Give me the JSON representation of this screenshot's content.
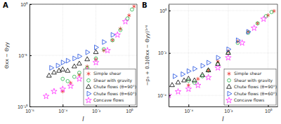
{
  "chart_data": [
    {
      "type": "scatter",
      "title": "A",
      "x_label": "I",
      "y_label": "Θxx − Θyy",
      "log": true,
      "grid": true,
      "legend": "lower right",
      "xlim": [
        1e-06,
        3
      ],
      "ylim": [
        1e-10,
        1
      ],
      "xticks": [
        {
          "value": 1e-06,
          "label": "10⁻⁶"
        },
        {
          "value": 0.0001,
          "label": "10⁻⁴"
        },
        {
          "value": 0.01,
          "label": "10⁻²"
        },
        {
          "value": 1,
          "label": "10⁰"
        }
      ],
      "yticks": [
        {
          "value": 1e-10,
          "label": "10⁻¹⁰"
        },
        {
          "value": 1e-05,
          "label": "10⁻⁵"
        },
        {
          "value": 1,
          "label": "10⁰"
        }
      ],
      "series": [
        {
          "name": "Simple shear",
          "color": "#e8312b",
          "marker": "asterisk",
          "x": [
            0.0001,
            0.0003,
            0.001,
            0.003,
            0.01,
            0.03,
            0.1,
            0.3,
            1,
            2
          ],
          "values": [
            3e-09,
            2e-08,
            1.2e-07,
            8e-07,
            4e-06,
            3e-05,
            0.0003,
            0.004,
            0.08,
            0.6
          ]
        },
        {
          "name": "Shear with gravity",
          "color": "#27b84a",
          "marker": "circle",
          "x": [
            0.0001,
            0.0002,
            0.0005,
            0.001,
            0.003,
            0.01,
            0.03,
            0.1,
            0.3,
            0.8,
            1.5
          ],
          "values": [
            5e-08,
            3e-08,
            8e-08,
            2e-07,
            6e-07,
            5e-06,
            4e-05,
            0.0003,
            0.003,
            0.04,
            0.3
          ]
        },
        {
          "name": "Chute flows (θ=90°)",
          "color": "#000000",
          "marker": "triangle-up",
          "x": [
            1.5e-05,
            3e-05,
            6e-05,
            0.0001,
            0.0002,
            0.0005,
            0.001,
            0.003,
            0.01
          ],
          "values": [
            1e-07,
            2e-07,
            3e-07,
            4e-07,
            3e-07,
            8e-07,
            1.5e-06,
            4e-06,
            2e-05
          ]
        },
        {
          "name": "Chute flows (θ=60°)",
          "color": "#1f4fe0",
          "marker": "triangle-right",
          "x": [
            2e-05,
            5e-05,
            0.0001,
            0.0002,
            0.0005,
            0.001,
            0.003,
            0.01,
            0.03,
            0.1
          ],
          "values": [
            6e-07,
            1e-06,
            2e-06,
            3e-06,
            5e-06,
            8e-06,
            2e-05,
            6e-05,
            0.0002,
            0.001
          ]
        },
        {
          "name": "Concave flows",
          "color": "#ff33ff",
          "marker": "star",
          "x": [
            1e-05,
            3e-05,
            0.0001,
            0.0003,
            0.001,
            0.003,
            0.01,
            0.05,
            0.2,
            0.6
          ],
          "values": [
            1e-09,
            3e-09,
            5e-09,
            1e-08,
            5e-08,
            3e-07,
            2e-06,
            3e-05,
            0.001,
            0.02
          ]
        }
      ]
    },
    {
      "type": "scatter",
      "title": "B",
      "x_label": "I",
      "y_label": "−p₃ + 0.1(Θxx − Θyy)¹ᐟ⁶",
      "log": true,
      "grid": true,
      "legend": "lower right",
      "xlim": [
        1e-05,
        3
      ],
      "ylim": [
        3e-05,
        2
      ],
      "xticks": [
        {
          "value": 0.0001,
          "label": "10⁻⁴"
        },
        {
          "value": 0.01,
          "label": "10⁻²"
        },
        {
          "value": 1,
          "label": "10⁰"
        }
      ],
      "yticks": [
        {
          "value": 0.0001,
          "label": "10⁻⁴"
        },
        {
          "value": 0.01,
          "label": "10⁻²"
        },
        {
          "value": 1,
          "label": "10⁰"
        }
      ],
      "series": [
        {
          "name": "Simple shear",
          "color": "#e8312b",
          "marker": "asterisk",
          "x": [
            0.0001,
            0.0003,
            0.001,
            0.003,
            0.01,
            0.03,
            0.1,
            0.3,
            1,
            2
          ],
          "values": [
            0.0003,
            0.0006,
            0.0015,
            0.004,
            0.012,
            0.035,
            0.1,
            0.25,
            0.6,
            0.95
          ]
        },
        {
          "name": "Shear with gravity",
          "color": "#27b84a",
          "marker": "circle",
          "x": [
            0.0001,
            0.0002,
            0.0005,
            0.001,
            0.003,
            0.01,
            0.03,
            0.1,
            0.3,
            0.8,
            1.5
          ],
          "values": [
            0.0005,
            0.0004,
            0.0008,
            0.0015,
            0.003,
            0.01,
            0.03,
            0.09,
            0.25,
            0.55,
            0.85
          ]
        },
        {
          "name": "Chute flows (θ=90°)",
          "color": "#000000",
          "marker": "triangle-up",
          "x": [
            1.5e-05,
            3e-05,
            6e-05,
            0.0001,
            0.0002,
            0.0005,
            0.001,
            0.003,
            0.01
          ],
          "values": [
            0.0003,
            0.0004,
            0.0005,
            0.0006,
            0.0005,
            0.0009,
            0.0015,
            0.003,
            0.01
          ]
        },
        {
          "name": "Chute flows (θ=60°)",
          "color": "#1f4fe0",
          "marker": "triangle-right",
          "x": [
            2e-05,
            5e-05,
            0.0001,
            0.0002,
            0.0005,
            0.001,
            0.003,
            0.01,
            0.03,
            0.1
          ],
          "values": [
            0.0008,
            0.001,
            0.0014,
            0.0018,
            0.0025,
            0.0035,
            0.006,
            0.015,
            0.04,
            0.1
          ]
        },
        {
          "name": "Concave flows",
          "color": "#ff33ff",
          "marker": "star",
          "x": [
            1e-05,
            3e-05,
            0.0001,
            0.0003,
            0.001,
            0.003,
            0.01,
            0.05,
            0.2,
            0.6
          ],
          "values": [
            0.0001,
            0.00015,
            0.0002,
            0.0003,
            0.0007,
            0.002,
            0.006,
            0.03,
            0.15,
            0.4
          ]
        }
      ]
    }
  ]
}
